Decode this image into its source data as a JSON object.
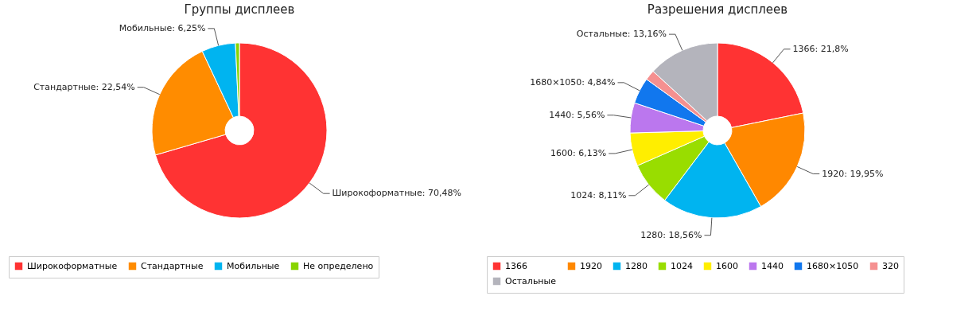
{
  "chart_data": [
    {
      "type": "donut",
      "title": "Группы дисплеев",
      "categories": [
        "Широкоформатные",
        "Стандартные",
        "Мобильные",
        "Не определено"
      ],
      "values": [
        70.48,
        22.54,
        6.25,
        0.73
      ],
      "colors": [
        "#ff3333",
        "#ff8c00",
        "#00b4f0",
        "#88d400"
      ],
      "value_labels": [
        "Широкоформатные: 70,48%",
        "Стандартные: 22,54%",
        "Мобильные: 6,25%",
        null
      ],
      "legend": "bottom"
    },
    {
      "type": "donut",
      "title": "Разрешения дисплеев",
      "categories": [
        "1366",
        "1920",
        "1280",
        "1024",
        "1600",
        "1440",
        "1680×1050",
        "320",
        "Остальные"
      ],
      "values": [
        21.8,
        19.95,
        18.56,
        8.11,
        6.13,
        5.56,
        4.84,
        1.89,
        13.16
      ],
      "colors": [
        "#ff3333",
        "#ff8800",
        "#00b4f0",
        "#99dd00",
        "#ffee00",
        "#bb77ee",
        "#1177ee",
        "#f59090",
        "#b4b4bc"
      ],
      "value_labels": [
        "1366: 21,8%",
        "1920: 19,95%",
        "1280: 18,56%",
        "1024: 8,11%",
        "1600: 6,13%",
        "1440: 5,56%",
        "1680×1050: 4,84%",
        null,
        "Остальные: 13,16%"
      ],
      "legend": "bottom"
    }
  ]
}
